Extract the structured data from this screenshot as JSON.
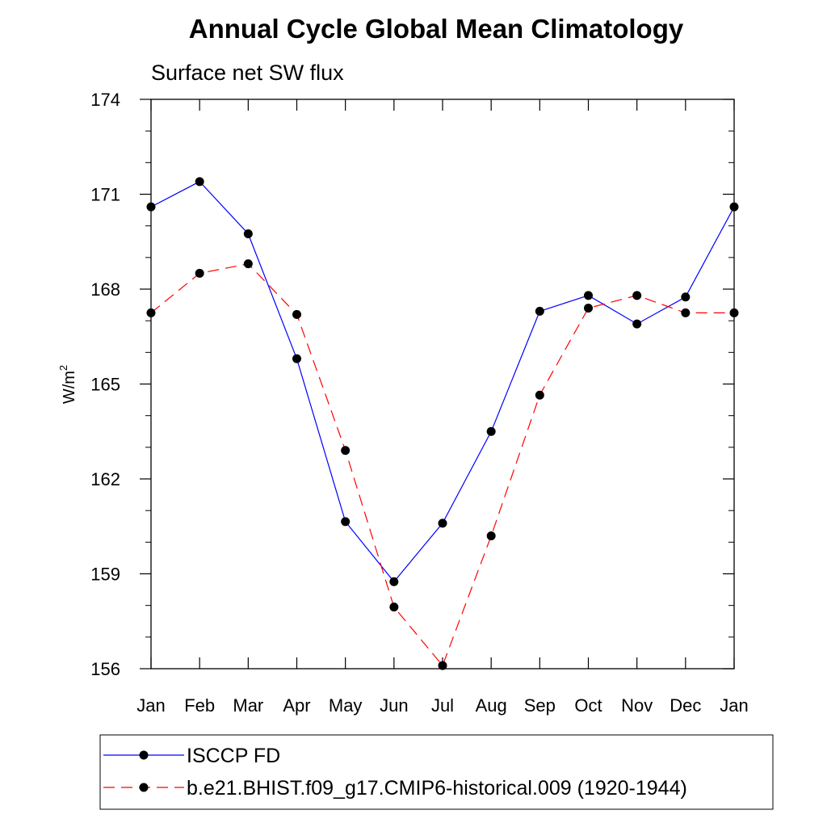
{
  "chart_data": {
    "type": "line",
    "title": "Annual Cycle Global Mean Climatology",
    "subtitle": "Surface net SW flux",
    "ylabel": "W/m",
    "ylabel_sup": "2",
    "xlabel": "",
    "categories": [
      "Jan",
      "Feb",
      "Mar",
      "Apr",
      "May",
      "Jun",
      "Jul",
      "Aug",
      "Sep",
      "Oct",
      "Nov",
      "Dec",
      "Jan"
    ],
    "yticks": [
      156,
      159,
      162,
      165,
      168,
      171,
      174
    ],
    "ylim": [
      156,
      174
    ],
    "grid": false,
    "legend_position": "bottom",
    "series": [
      {
        "name": "ISCCP FD",
        "color": "#0000ff",
        "dashed": false,
        "values": [
          170.6,
          171.4,
          169.75,
          165.8,
          160.65,
          158.75,
          160.6,
          163.5,
          167.3,
          167.8,
          166.9,
          167.75,
          170.6
        ]
      },
      {
        "name": "b.e21.BHIST.f09_g17.CMIP6-historical.009 (1920-1944)",
        "color": "#ff0000",
        "dashed": true,
        "values": [
          167.25,
          168.5,
          168.8,
          167.2,
          162.9,
          157.95,
          156.1,
          160.2,
          164.65,
          167.4,
          167.8,
          167.25,
          167.25
        ]
      }
    ]
  }
}
